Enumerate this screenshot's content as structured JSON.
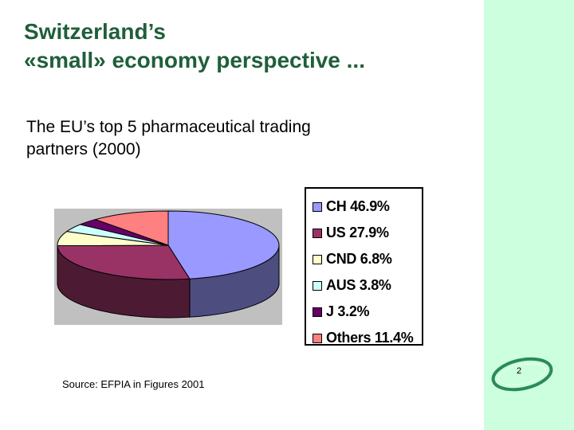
{
  "slide": {
    "title_line1": "Switzerland’s",
    "title_line2": "«small» economy perspective ...",
    "subtitle_line1": "The EU’s top 5 pharmaceutical trading",
    "subtitle_line2": "partners (2000)",
    "source": "Source: EFPIA in Figures 2001",
    "page_number": "2"
  },
  "colors": {
    "side_panel": "#ccffdd",
    "title": "#1f5f3a",
    "plot_background": "#c0c0c0"
  },
  "chart_data": {
    "type": "pie",
    "style": "3d",
    "title": "",
    "legend_position": "right",
    "categories": [
      "CH",
      "US",
      "CND",
      "AUS",
      "J",
      "Others"
    ],
    "values": [
      46.9,
      27.9,
      6.8,
      3.8,
      3.2,
      11.4
    ],
    "legend_labels": [
      "CH 46.9%",
      "US 27.9%",
      "CND 6.8%",
      "AUS 3.8%",
      "J 3.2%",
      "Others 11.4%"
    ],
    "colors": [
      "#9999ff",
      "#993366",
      "#ffffcc",
      "#ccffff",
      "#660066",
      "#ff8080"
    ]
  }
}
